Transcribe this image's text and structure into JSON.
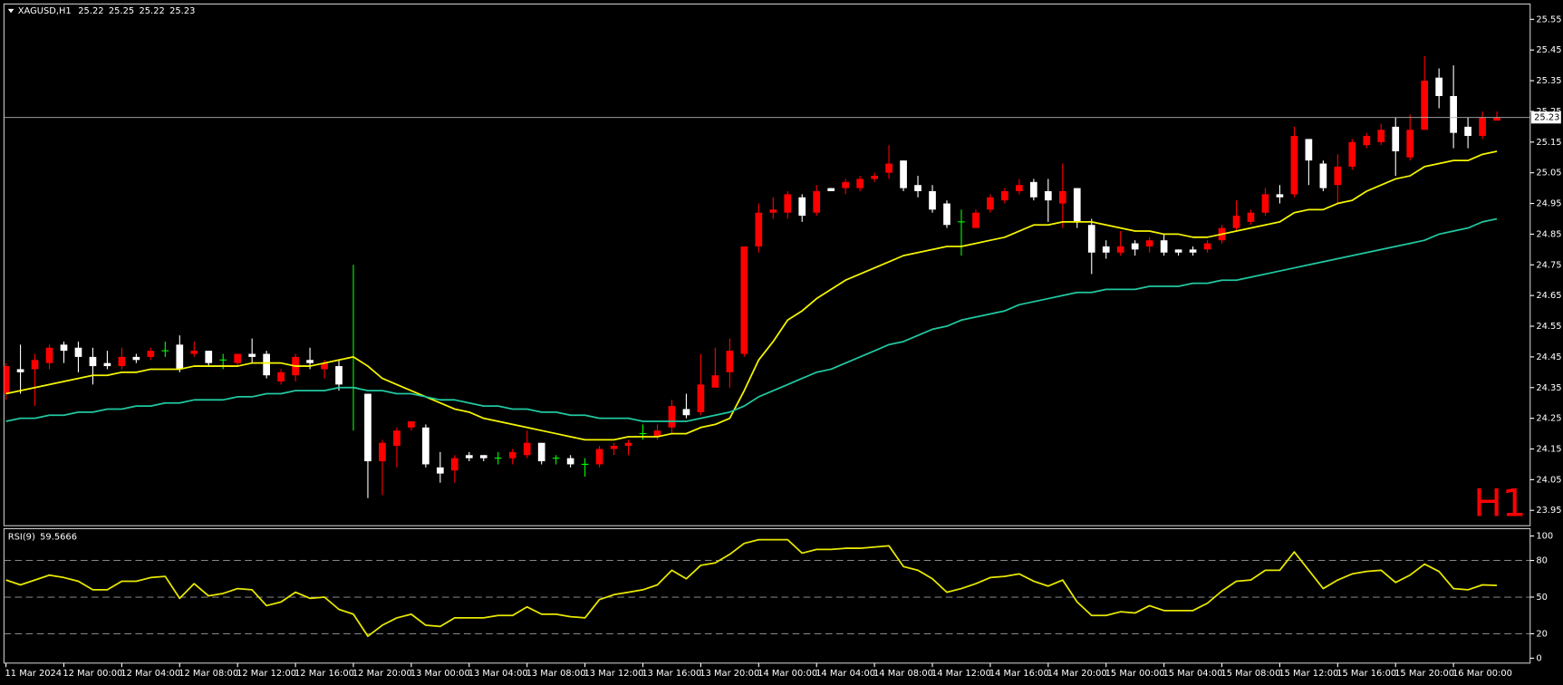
{
  "chart_data": [
    {
      "type": "candlestick",
      "title": "XAGUSD,H1",
      "timeframe_label": "H1",
      "up_color": "#ff0000",
      "down_color": "#ffffff",
      "doji_color": "#00ff00",
      "ylim": [
        23.9,
        25.6
      ],
      "yticks": [
        25.55,
        25.45,
        25.35,
        25.25,
        25.15,
        25.05,
        24.95,
        24.85,
        24.75,
        24.65,
        24.55,
        24.45,
        24.35,
        24.25,
        24.15,
        24.05,
        23.95
      ],
      "open": [
        24.33,
        24.41,
        24.41,
        24.43,
        24.49,
        24.48,
        24.45,
        24.43,
        24.42,
        24.45,
        24.45,
        24.47,
        24.49,
        24.46,
        24.47,
        24.44,
        24.43,
        24.46,
        24.46,
        24.37,
        24.39,
        24.44,
        24.41,
        24.42,
        24.35,
        24.33,
        24.11,
        24.16,
        24.22,
        24.22,
        24.09,
        24.08,
        24.13,
        24.13,
        24.12,
        24.12,
        24.13,
        24.17,
        24.12,
        24.12,
        24.1,
        24.1,
        24.15,
        24.16,
        24.2,
        24.19,
        24.22,
        24.28,
        24.27,
        24.35,
        24.4,
        24.46,
        24.81,
        24.92,
        24.92,
        24.97,
        24.92,
        25.0,
        25.0,
        25.0,
        25.03,
        25.05,
        25.09,
        25.01,
        24.99,
        24.95,
        24.89,
        24.87,
        24.93,
        24.96,
        24.99,
        25.02,
        24.99,
        24.95,
        25.0,
        24.88,
        24.81,
        24.79,
        24.82,
        24.81,
        24.83,
        24.8,
        24.8,
        24.8,
        24.83,
        24.87,
        24.89,
        24.92,
        24.98,
        24.98,
        25.16,
        25.08,
        25.01,
        25.07,
        25.14,
        25.15,
        25.2,
        25.1,
        25.19,
        25.36,
        25.3,
        25.2,
        25.17,
        25.22
      ],
      "high": [
        24.43,
        24.49,
        24.46,
        24.49,
        24.5,
        24.5,
        24.48,
        24.47,
        24.48,
        24.46,
        24.48,
        24.5,
        24.52,
        24.5,
        24.47,
        24.46,
        24.46,
        24.51,
        24.47,
        24.41,
        24.46,
        24.48,
        24.44,
        24.44,
        24.75,
        24.33,
        24.18,
        24.22,
        24.24,
        24.23,
        24.14,
        24.13,
        24.14,
        24.13,
        24.14,
        24.15,
        24.21,
        24.17,
        24.13,
        24.13,
        24.12,
        24.16,
        24.17,
        24.18,
        24.23,
        24.23,
        24.31,
        24.33,
        24.46,
        24.48,
        24.51,
        24.81,
        24.95,
        24.97,
        24.99,
        24.98,
        25.01,
        25.0,
        25.03,
        25.04,
        25.05,
        25.14,
        25.09,
        25.04,
        25.01,
        24.96,
        24.93,
        24.93,
        24.98,
        25.0,
        25.03,
        25.03,
        25.03,
        25.08,
        25.0,
        24.9,
        24.83,
        24.86,
        24.83,
        24.84,
        24.85,
        24.8,
        24.81,
        24.83,
        24.88,
        24.96,
        24.93,
        25.0,
        25.01,
        25.2,
        25.16,
        25.09,
        25.11,
        25.16,
        25.18,
        25.21,
        25.23,
        25.24,
        25.43,
        25.39,
        25.4,
        25.23,
        25.25,
        25.25
      ],
      "low": [
        24.31,
        24.33,
        24.29,
        24.41,
        24.43,
        24.4,
        24.36,
        24.41,
        24.41,
        24.43,
        24.44,
        24.45,
        24.4,
        24.45,
        24.42,
        24.41,
        24.42,
        24.43,
        24.38,
        24.36,
        24.37,
        24.41,
        24.38,
        24.34,
        24.21,
        23.99,
        24.0,
        24.09,
        24.21,
        24.09,
        24.04,
        24.04,
        24.11,
        24.11,
        24.1,
        24.1,
        24.12,
        24.1,
        24.1,
        24.09,
        24.06,
        24.09,
        24.13,
        24.13,
        24.18,
        24.18,
        24.2,
        24.25,
        24.26,
        24.35,
        24.35,
        24.45,
        24.79,
        24.9,
        24.9,
        24.89,
        24.91,
        24.99,
        24.98,
        24.99,
        25.02,
        25.03,
        24.99,
        24.97,
        24.92,
        24.87,
        24.78,
        24.87,
        24.92,
        24.95,
        24.98,
        24.96,
        24.89,
        24.87,
        24.87,
        24.72,
        24.77,
        24.78,
        24.78,
        24.79,
        24.78,
        24.78,
        24.78,
        24.79,
        24.82,
        24.86,
        24.88,
        24.91,
        24.95,
        24.97,
        25.01,
        24.99,
        24.95,
        25.06,
        25.13,
        25.14,
        25.04,
        25.09,
        25.19,
        25.26,
        25.13,
        25.13,
        25.16,
        25.22
      ],
      "close": [
        24.42,
        24.4,
        24.44,
        24.48,
        24.47,
        24.45,
        24.42,
        24.42,
        24.45,
        24.44,
        24.47,
        24.47,
        24.41,
        24.47,
        24.43,
        24.44,
        24.46,
        24.45,
        24.39,
        24.4,
        24.45,
        24.43,
        24.43,
        24.36,
        24.35,
        24.11,
        24.17,
        24.21,
        24.24,
        24.1,
        24.07,
        24.12,
        24.12,
        24.12,
        24.12,
        24.14,
        24.17,
        24.11,
        24.12,
        24.1,
        24.1,
        24.15,
        24.16,
        24.17,
        24.2,
        24.21,
        24.29,
        24.26,
        24.36,
        24.39,
        24.47,
        24.81,
        24.92,
        24.93,
        24.98,
        24.91,
        24.99,
        24.99,
        25.02,
        25.03,
        25.04,
        25.08,
        25.0,
        24.99,
        24.93,
        24.88,
        24.89,
        24.92,
        24.97,
        24.99,
        25.01,
        24.97,
        24.96,
        24.99,
        24.89,
        24.79,
        24.79,
        24.81,
        24.8,
        24.83,
        24.79,
        24.79,
        24.79,
        24.82,
        24.87,
        24.91,
        24.92,
        24.98,
        24.97,
        25.17,
        25.09,
        25.0,
        25.07,
        25.15,
        25.17,
        25.19,
        25.12,
        25.19,
        25.35,
        25.3,
        25.18,
        25.17,
        25.23,
        25.23
      ],
      "lines": [
        {
          "color": "#f5f500",
          "values": [
            24.33,
            24.34,
            24.35,
            24.36,
            24.37,
            24.38,
            24.39,
            24.39,
            24.4,
            24.4,
            24.41,
            24.41,
            24.41,
            24.42,
            24.42,
            24.42,
            24.42,
            24.43,
            24.43,
            24.43,
            24.42,
            24.42,
            24.43,
            24.44,
            24.45,
            24.42,
            24.38,
            24.36,
            24.34,
            24.32,
            24.3,
            24.28,
            24.27,
            24.25,
            24.24,
            24.23,
            24.22,
            24.21,
            24.2,
            24.19,
            24.18,
            24.18,
            24.18,
            24.19,
            24.19,
            24.19,
            24.2,
            24.2,
            24.22,
            24.23,
            24.25,
            24.34,
            24.44,
            24.5,
            24.57,
            24.6,
            24.64,
            24.67,
            24.7,
            24.72,
            24.74,
            24.76,
            24.78,
            24.79,
            24.8,
            24.81,
            24.81,
            24.82,
            24.83,
            24.84,
            24.86,
            24.88,
            24.88,
            24.89,
            24.89,
            24.89,
            24.88,
            24.87,
            24.86,
            24.86,
            24.85,
            24.85,
            24.84,
            24.84,
            24.85,
            24.86,
            24.87,
            24.88,
            24.89,
            24.92,
            24.93,
            24.93,
            24.95,
            24.96,
            24.99,
            25.01,
            25.03,
            25.04,
            25.07,
            25.08,
            25.09,
            25.09,
            25.11,
            25.12
          ]
        },
        {
          "color": "#20c8a0",
          "values": [
            24.24,
            24.25,
            24.25,
            24.26,
            24.26,
            24.27,
            24.27,
            24.28,
            24.28,
            24.29,
            24.29,
            24.3,
            24.3,
            24.31,
            24.31,
            24.31,
            24.32,
            24.32,
            24.33,
            24.33,
            24.34,
            24.34,
            24.34,
            24.35,
            24.35,
            24.34,
            24.34,
            24.33,
            24.33,
            24.32,
            24.31,
            24.31,
            24.3,
            24.29,
            24.29,
            24.28,
            24.28,
            24.27,
            24.27,
            24.26,
            24.26,
            24.25,
            24.25,
            24.25,
            24.24,
            24.24,
            24.24,
            24.24,
            24.25,
            24.26,
            24.27,
            24.29,
            24.32,
            24.34,
            24.36,
            24.38,
            24.4,
            24.41,
            24.43,
            24.45,
            24.47,
            24.49,
            24.5,
            24.52,
            24.54,
            24.55,
            24.57,
            24.58,
            24.59,
            24.6,
            24.62,
            24.63,
            24.64,
            24.65,
            24.66,
            24.66,
            24.67,
            24.67,
            24.67,
            24.68,
            24.68,
            24.68,
            24.69,
            24.69,
            24.7,
            24.7,
            24.71,
            24.72,
            24.73,
            24.74,
            24.75,
            24.76,
            24.77,
            24.78,
            24.79,
            24.8,
            24.81,
            24.82,
            24.83,
            24.85,
            24.86,
            24.87,
            24.89,
            24.9
          ]
        }
      ]
    },
    {
      "type": "line",
      "title": "RSI(9)",
      "color": "#e8e800",
      "ylim": [
        -4,
        106
      ],
      "yticks": [
        100,
        80,
        50,
        20,
        0
      ],
      "levels": [
        20,
        50,
        80
      ],
      "categories": [
        "11 Mar 2024",
        null,
        null,
        null,
        "12 Mar 00:00",
        null,
        null,
        null,
        "12 Mar 04:00",
        null,
        null,
        null,
        "12 Mar 08:00",
        null,
        null,
        null,
        "12 Mar 12:00",
        null,
        null,
        null,
        "12 Mar 16:00",
        null,
        null,
        null,
        "12 Mar 20:00",
        null,
        null,
        null,
        "13 Mar 00:00",
        null,
        null,
        null,
        "13 Mar 04:00",
        null,
        null,
        null,
        "13 Mar 08:00",
        null,
        null,
        null,
        "13 Mar 12:00",
        null,
        null,
        null,
        "13 Mar 16:00",
        null,
        null,
        null,
        "13 Mar 20:00",
        null,
        null,
        null,
        "14 Mar 00:00",
        null,
        null,
        null,
        "14 Mar 04:00",
        null,
        null,
        null,
        "14 Mar 08:00",
        null,
        null,
        null,
        "14 Mar 12:00",
        null,
        null,
        null,
        "14 Mar 16:00",
        null,
        null,
        null,
        "14 Mar 20:00",
        null,
        null,
        null,
        "15 Mar 00:00",
        null,
        null,
        null,
        "15 Mar 04:00",
        null,
        null,
        null,
        "15 Mar 08:00",
        null,
        null,
        null,
        "15 Mar 12:00",
        null,
        null,
        null,
        "15 Mar 16:00",
        null,
        null,
        null,
        "15 Mar 20:00",
        null,
        null,
        null,
        "16 Mar 00:00",
        null,
        null,
        null
      ],
      "values": [
        64,
        60,
        64,
        68,
        66,
        63,
        56,
        56,
        63,
        63,
        66,
        67,
        49,
        61,
        51,
        53,
        57,
        56,
        43,
        46,
        54,
        49,
        50,
        40,
        36,
        18,
        27,
        33,
        36,
        27,
        26,
        33,
        33,
        33,
        35,
        35,
        42,
        36,
        36,
        34,
        33,
        48,
        52,
        54,
        56,
        60,
        72,
        65,
        76,
        78,
        85,
        94,
        97,
        97,
        97,
        86,
        89,
        89,
        90,
        90,
        91,
        92,
        75,
        72,
        65,
        54,
        57,
        61,
        66,
        67,
        69,
        63,
        59,
        64,
        46,
        35,
        35,
        38,
        37,
        43,
        39,
        39,
        39,
        45,
        55,
        63,
        64,
        72,
        72,
        87,
        72,
        57,
        64,
        69,
        71,
        72,
        62,
        68,
        77,
        71,
        57,
        56,
        60,
        59.5666
      ]
    }
  ]
}
